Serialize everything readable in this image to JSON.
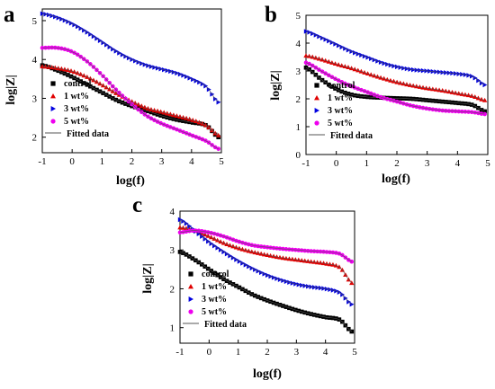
{
  "chart_data": [
    {
      "panel": "a",
      "type": "scatter",
      "xlabel": "log(f)",
      "ylabel": "log|Z|",
      "xlim": [
        -1,
        5
      ],
      "ylim": [
        1.6,
        5.3
      ],
      "xticks": [
        "-1",
        "0",
        "1",
        "2",
        "3",
        "4",
        "5"
      ],
      "yticks": [
        "2",
        "3",
        "4",
        "5"
      ],
      "legend": [
        "control",
        "1 wt%",
        "3 wt%",
        "5 wt%",
        "Fitted data"
      ],
      "legend_position": "lower-left",
      "series": [
        {
          "name": "control",
          "marker": "square",
          "color": "#000000",
          "x": [
            -1,
            -0.5,
            0,
            0.5,
            1,
            1.5,
            2,
            2.5,
            3,
            3.5,
            4,
            4.5,
            4.9
          ],
          "y": [
            3.85,
            3.72,
            3.55,
            3.35,
            3.15,
            2.95,
            2.8,
            2.68,
            2.55,
            2.45,
            2.38,
            2.3,
            2.0
          ]
        },
        {
          "name": "1 wt%",
          "marker": "triangle-up",
          "color": "#e00000",
          "x": [
            -1,
            -0.5,
            0,
            0.5,
            1,
            1.5,
            2,
            2.5,
            3,
            3.5,
            4,
            4.5,
            4.9
          ],
          "y": [
            3.82,
            3.78,
            3.7,
            3.55,
            3.35,
            3.12,
            2.92,
            2.75,
            2.65,
            2.55,
            2.45,
            2.3,
            2.05
          ]
        },
        {
          "name": "3 wt%",
          "marker": "triangle-right",
          "color": "#0000e0",
          "x": [
            -1,
            -0.5,
            0,
            0.5,
            1,
            1.5,
            2,
            2.5,
            3,
            3.5,
            4,
            4.5,
            4.9
          ],
          "y": [
            5.18,
            5.08,
            4.92,
            4.7,
            4.45,
            4.2,
            4.0,
            3.85,
            3.75,
            3.65,
            3.5,
            3.3,
            2.9
          ]
        },
        {
          "name": "5 wt%",
          "marker": "circle",
          "color": "#ee00ee",
          "x": [
            -1,
            -0.5,
            0,
            0.5,
            1,
            1.5,
            2,
            2.5,
            3,
            3.5,
            4,
            4.5,
            4.9
          ],
          "y": [
            4.3,
            4.3,
            4.2,
            3.95,
            3.6,
            3.2,
            2.85,
            2.55,
            2.35,
            2.2,
            2.05,
            1.9,
            1.7
          ]
        }
      ]
    },
    {
      "panel": "b",
      "type": "scatter",
      "xlabel": "log(f)",
      "ylabel": "log|Z|",
      "xlim": [
        -1,
        5
      ],
      "ylim": [
        0,
        5
      ],
      "xticks": [
        "-1",
        "0",
        "1",
        "2",
        "3",
        "4",
        "5"
      ],
      "yticks": [
        "0",
        "1",
        "2",
        "3",
        "4",
        "5"
      ],
      "legend": [
        "control",
        "1 wt%",
        "3 wt%",
        "5 wt%",
        "Fitted data"
      ],
      "legend_position": "lower-left",
      "series": [
        {
          "name": "control",
          "marker": "square",
          "color": "#000000",
          "x": [
            -1,
            -0.5,
            0,
            0.5,
            1,
            1.5,
            2,
            2.5,
            3,
            3.5,
            4,
            4.5,
            4.9
          ],
          "y": [
            3.12,
            2.7,
            2.35,
            2.15,
            2.07,
            2.04,
            2.02,
            2.0,
            1.95,
            1.9,
            1.85,
            1.78,
            1.55
          ]
        },
        {
          "name": "1 wt%",
          "marker": "triangle-up",
          "color": "#e00000",
          "x": [
            -1,
            -0.5,
            0,
            0.5,
            1,
            1.5,
            2,
            2.5,
            3,
            3.5,
            4,
            4.5,
            4.9
          ],
          "y": [
            3.55,
            3.42,
            3.25,
            3.1,
            2.92,
            2.75,
            2.6,
            2.48,
            2.38,
            2.3,
            2.2,
            2.1,
            1.95
          ]
        },
        {
          "name": "3 wt%",
          "marker": "triangle-right",
          "color": "#0000e0",
          "x": [
            -1,
            -0.5,
            0,
            0.5,
            1,
            1.5,
            2,
            2.5,
            3,
            3.5,
            4,
            4.5,
            4.9
          ],
          "y": [
            4.42,
            4.2,
            3.95,
            3.7,
            3.5,
            3.3,
            3.15,
            3.05,
            3.0,
            2.95,
            2.9,
            2.8,
            2.5
          ]
        },
        {
          "name": "5 wt%",
          "marker": "circle",
          "color": "#ee00ee",
          "x": [
            -1,
            -0.5,
            0,
            0.5,
            1,
            1.5,
            2,
            2.5,
            3,
            3.5,
            4,
            4.5,
            4.9
          ],
          "y": [
            3.3,
            3.0,
            2.7,
            2.45,
            2.25,
            2.05,
            1.9,
            1.75,
            1.65,
            1.58,
            1.55,
            1.52,
            1.45
          ]
        }
      ]
    },
    {
      "panel": "c",
      "type": "scatter",
      "xlabel": "log(f)",
      "ylabel": "log|Z|",
      "xlim": [
        -1,
        5
      ],
      "ylim": [
        0.6,
        4
      ],
      "xticks": [
        "-1",
        "0",
        "1",
        "2",
        "3",
        "4",
        "5"
      ],
      "yticks": [
        "1",
        "2",
        "3",
        "4"
      ],
      "legend": [
        "control",
        "1 wt%",
        "3 wt%",
        "5 wt%",
        "Fitted data"
      ],
      "legend_position": "lower-left",
      "series": [
        {
          "name": "control",
          "marker": "square",
          "color": "#000000",
          "x": [
            -1,
            -0.5,
            0,
            0.5,
            1,
            1.5,
            2,
            2.5,
            3,
            3.5,
            4,
            4.5,
            4.9
          ],
          "y": [
            2.95,
            2.75,
            2.5,
            2.25,
            2.05,
            1.85,
            1.7,
            1.57,
            1.45,
            1.35,
            1.27,
            1.2,
            0.9
          ]
        },
        {
          "name": "1 wt%",
          "marker": "triangle-up",
          "color": "#e00000",
          "x": [
            -1,
            -0.5,
            0,
            0.5,
            1,
            1.5,
            2,
            2.5,
            3,
            3.5,
            4,
            4.5,
            4.9
          ],
          "y": [
            3.58,
            3.5,
            3.35,
            3.18,
            3.05,
            2.95,
            2.87,
            2.8,
            2.75,
            2.7,
            2.65,
            2.55,
            2.15
          ]
        },
        {
          "name": "3 wt%",
          "marker": "triangle-right",
          "color": "#0000e0",
          "x": [
            -1,
            -0.5,
            0,
            0.5,
            1,
            1.5,
            2,
            2.5,
            3,
            3.5,
            4,
            4.5,
            4.9
          ],
          "y": [
            3.78,
            3.5,
            3.2,
            2.95,
            2.72,
            2.52,
            2.35,
            2.22,
            2.12,
            2.05,
            2.0,
            1.9,
            1.6
          ]
        },
        {
          "name": "5 wt%",
          "marker": "circle",
          "color": "#ee00ee",
          "x": [
            -1,
            -0.5,
            0,
            0.5,
            1,
            1.5,
            2,
            2.5,
            3,
            3.5,
            4,
            4.5,
            4.9
          ],
          "y": [
            3.45,
            3.5,
            3.45,
            3.35,
            3.22,
            3.12,
            3.07,
            3.03,
            3.0,
            2.97,
            2.95,
            2.9,
            2.7
          ]
        }
      ]
    }
  ]
}
